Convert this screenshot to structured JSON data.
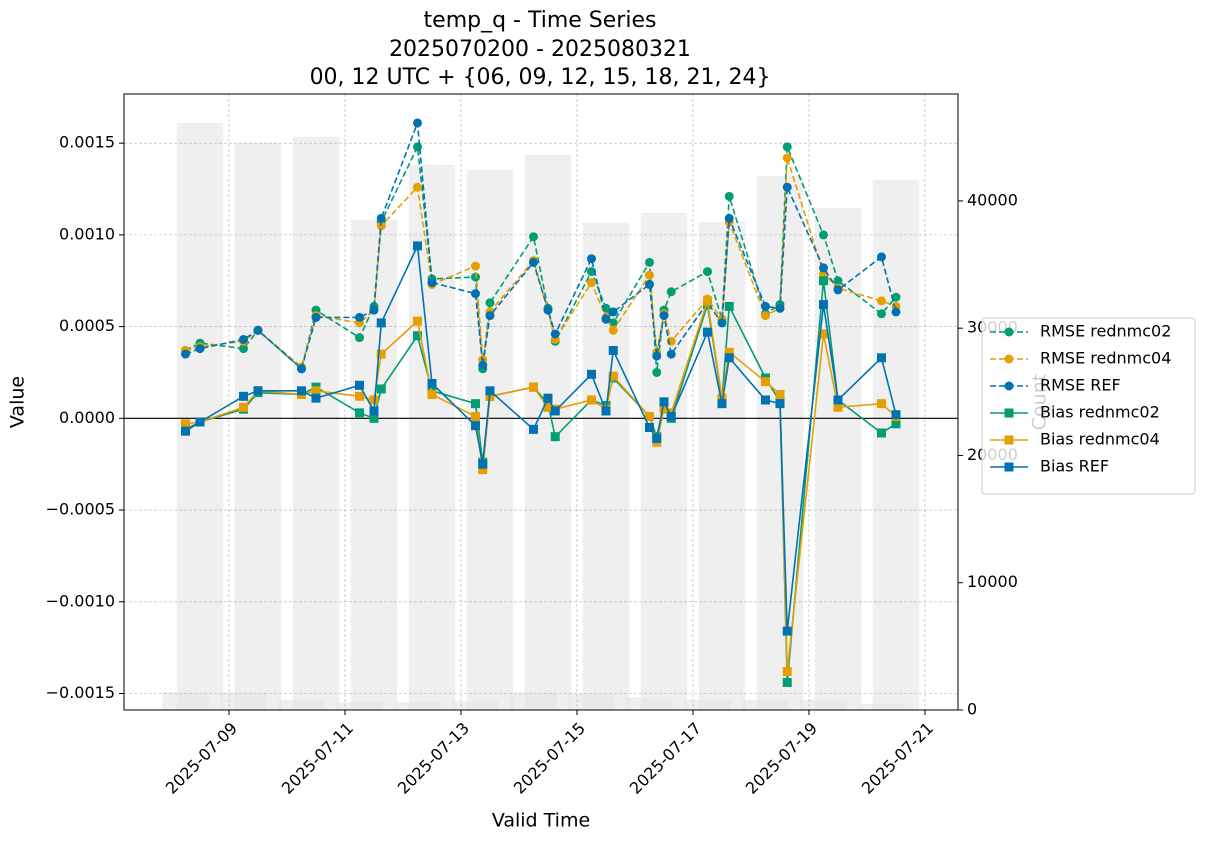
{
  "chart_data": {
    "type": "line",
    "title": [
      "temp_q - Time Series",
      "2025070200 - 2025080321",
      "00, 12 UTC + {06, 09, 12, 15, 18, 21, 24}"
    ],
    "xlabel": "Valid Time",
    "ylabel": "Value",
    "y2label": "Count",
    "x": [
      "2025-07-08 06:00",
      "2025-07-08 12:00",
      "2025-07-09 06:00",
      "2025-07-09 12:00",
      "2025-07-10 06:00",
      "2025-07-10 12:00",
      "2025-07-11 06:00",
      "2025-07-11 12:00",
      "2025-07-11 15:00",
      "2025-07-12 06:00",
      "2025-07-12 12:00",
      "2025-07-13 06:00",
      "2025-07-13 09:00",
      "2025-07-13 12:00",
      "2025-07-14 06:00",
      "2025-07-14 12:00",
      "2025-07-14 15:00",
      "2025-07-15 06:00",
      "2025-07-15 12:00",
      "2025-07-15 15:00",
      "2025-07-16 06:00",
      "2025-07-16 09:00",
      "2025-07-16 12:00",
      "2025-07-16 15:00",
      "2025-07-17 06:00",
      "2025-07-17 12:00",
      "2025-07-17 15:00",
      "2025-07-18 06:00",
      "2025-07-18 12:00",
      "2025-07-18 15:00",
      "2025-07-19 06:00",
      "2025-07-19 12:00",
      "2025-07-20 06:00",
      "2025-07-20 12:00"
    ],
    "series": [
      {
        "name": "RMSE rednmc02",
        "color": "#009e73",
        "linestyle": "dashed",
        "marker": "o",
        "values": [
          0.00037,
          0.00041,
          0.00038,
          0.00048,
          0.00027,
          0.00059,
          0.00044,
          0.00061,
          0.00107,
          0.00148,
          0.00076,
          0.00077,
          0.00027,
          0.00063,
          0.00099,
          0.0006,
          0.00042,
          0.0008,
          0.0006,
          0.00052,
          0.00085,
          0.00025,
          0.00059,
          0.00069,
          0.0008,
          0.00054,
          0.00121,
          0.00057,
          0.00062,
          0.00148,
          0.001,
          0.00075,
          0.00057,
          0.00066
        ]
      },
      {
        "name": "RMSE rednmc04",
        "color": "#e69f00",
        "linestyle": "dashed",
        "marker": "o",
        "values": [
          0.00037,
          0.00039,
          0.00042,
          0.00048,
          0.00028,
          0.00056,
          0.00052,
          0.00059,
          0.00105,
          0.00126,
          0.00073,
          0.00083,
          0.00032,
          0.00058,
          0.00086,
          0.00059,
          0.00043,
          0.00074,
          0.00055,
          0.00048,
          0.00078,
          0.00036,
          0.00057,
          0.00042,
          0.00065,
          0.00054,
          0.00107,
          0.00056,
          0.0006,
          0.00142,
          0.00079,
          0.00071,
          0.00064,
          0.00061
        ]
      },
      {
        "name": "RMSE REF",
        "color": "#0072b2",
        "linestyle": "dashed",
        "marker": "o",
        "values": [
          0.00035,
          0.00038,
          0.00043,
          0.00048,
          0.00027,
          0.00055,
          0.00055,
          0.00059,
          0.00109,
          0.00161,
          0.00074,
          0.00068,
          0.00029,
          0.00056,
          0.00085,
          0.00059,
          0.00046,
          0.00087,
          0.00054,
          0.00058,
          0.00073,
          0.00034,
          0.00056,
          0.00035,
          0.00063,
          0.00052,
          0.00109,
          0.00061,
          0.0006,
          0.00126,
          0.00082,
          0.0007,
          0.00088,
          0.00058
        ]
      },
      {
        "name": "Bias rednmc02",
        "color": "#009e73",
        "linestyle": "solid",
        "marker": "s",
        "values": [
          -6e-05,
          -2e-05,
          5e-05,
          0.00014,
          0.00013,
          0.00017,
          3e-05,
          0.0,
          0.00016,
          0.00045,
          0.00015,
          8e-05,
          -0.00024,
          0.00012,
          0.00017,
          8e-05,
          -0.0001,
          0.0001,
          7e-05,
          0.00022,
          1e-05,
          -0.0001,
          6e-05,
          0.0,
          0.00062,
          0.0001,
          0.00061,
          0.00022,
          9e-05,
          -0.00144,
          0.00075,
          0.0001,
          -8e-05,
          -3e-05
        ]
      },
      {
        "name": "Bias rednmc04",
        "color": "#e69f00",
        "linestyle": "solid",
        "marker": "s",
        "values": [
          -3e-05,
          -2e-05,
          6e-05,
          0.00015,
          0.00013,
          0.00015,
          0.00012,
          0.0001,
          0.00035,
          0.00053,
          0.00013,
          1e-05,
          -0.00028,
          0.00012,
          0.00017,
          6e-05,
          5e-05,
          0.0001,
          5e-05,
          0.00023,
          1e-05,
          -0.00013,
          5e-05,
          3e-05,
          0.00064,
          0.00011,
          0.00036,
          0.0002,
          0.00013,
          -0.00138,
          0.00046,
          6e-05,
          8e-05,
          1e-05
        ]
      },
      {
        "name": "Bias REF",
        "color": "#0072b2",
        "linestyle": "solid",
        "marker": "s",
        "values": [
          -7e-05,
          -2e-05,
          0.00012,
          0.00015,
          0.00015,
          0.00011,
          0.00018,
          4e-05,
          0.00052,
          0.00094,
          0.00019,
          -4e-05,
          -0.00025,
          0.00015,
          -6e-05,
          0.00011,
          4e-05,
          0.00024,
          4e-05,
          0.00037,
          -5e-05,
          -0.00011,
          9e-05,
          1e-05,
          0.00047,
          8e-05,
          0.00033,
          0.0001,
          8e-05,
          -0.00116,
          0.00062,
          0.0001,
          0.00033,
          2e-05
        ]
      }
    ],
    "count_bars": {
      "axis": "y2",
      "color": "#e4e4e4",
      "x": [
        "2025-07-08 12:00",
        "2025-07-09 12:00",
        "2025-07-10 12:00",
        "2025-07-11 12:00",
        "2025-07-12 12:00",
        "2025-07-13 12:00",
        "2025-07-14 12:00",
        "2025-07-15 12:00",
        "2025-07-16 12:00",
        "2025-07-17 12:00",
        "2025-07-18 12:00",
        "2025-07-19 12:00",
        "2025-07-20 12:00",
        "2025-07-08 06:00",
        "2025-07-09 06:00",
        "2025-07-10 06:00",
        "2025-07-11 06:00",
        "2025-07-12 06:00",
        "2025-07-13 06:00",
        "2025-07-14 06:00",
        "2025-07-15 06:00",
        "2025-07-16 06:00",
        "2025-07-17 06:00",
        "2025-07-18 06:00",
        "2025-07-19 06:00",
        "2025-07-20 06:00"
      ],
      "values": [
        46130,
        44560,
        45030,
        38510,
        42830,
        42440,
        43610,
        38270,
        39060,
        38350,
        41960,
        39450,
        41650,
        1400,
        1400,
        800,
        600,
        600,
        700,
        1400,
        1300,
        1000,
        800,
        800,
        800,
        500
      ]
    },
    "xlim": [
      "2025-07-07 04:33",
      "2025-07-21 13:40"
    ],
    "xticks": [
      "2025-07-09",
      "2025-07-11",
      "2025-07-13",
      "2025-07-15",
      "2025-07-17",
      "2025-07-19",
      "2025-07-21"
    ],
    "ylim": [
      -0.00159,
      0.001768
    ],
    "yticks": [
      {
        "value": -0.0015,
        "label": "−0.0015"
      },
      {
        "value": -0.001,
        "label": "−0.0010"
      },
      {
        "value": -0.0005,
        "label": "−0.0005"
      },
      {
        "value": 0,
        "label": "0.0000"
      },
      {
        "value": 0.0005,
        "label": "0.0005"
      },
      {
        "value": 0.001,
        "label": "0.0010"
      },
      {
        "value": 0.0015,
        "label": "0.0015"
      }
    ],
    "y2lim": [
      0,
      48400
    ],
    "y2ticks": [
      0,
      10000,
      20000,
      30000,
      40000
    ],
    "axhline": 0,
    "grid": true,
    "legend": "right"
  }
}
